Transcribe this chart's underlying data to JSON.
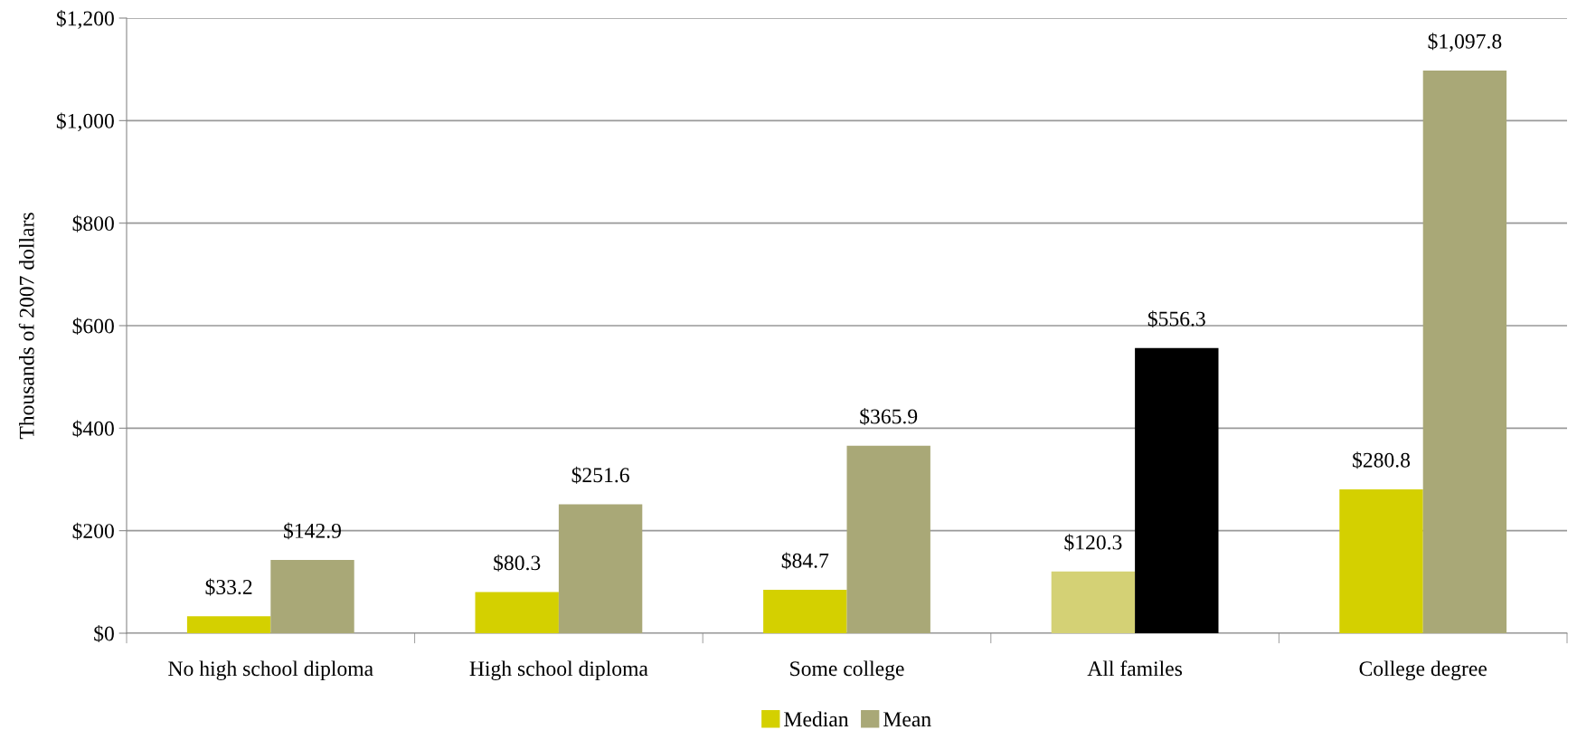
{
  "chart_data": {
    "type": "bar",
    "ylabel": "Thousands of 2007 dollars",
    "categories": [
      "No high school diploma",
      "High school diploma",
      "Some college",
      "All familes",
      "College degree"
    ],
    "series": [
      {
        "name": "Median",
        "color": "#d4d000",
        "colors": [
          "#d4d000",
          "#d4d000",
          "#d4d000",
          "#d4d175",
          "#d4d000"
        ],
        "values": [
          33.2,
          80.3,
          84.7,
          120.3,
          280.8
        ],
        "value_labels": [
          "$33.2",
          "$80.3",
          "$84.7",
          "$120.3",
          "$280.8"
        ]
      },
      {
        "name": "Mean",
        "color": "#a9a877",
        "colors": [
          "#a9a877",
          "#a9a877",
          "#a9a877",
          "#000000",
          "#a9a877"
        ],
        "values": [
          142.9,
          251.6,
          365.9,
          556.3,
          1097.8
        ],
        "value_labels": [
          "$142.9",
          "$251.6",
          "$365.9",
          "$556.3",
          "$1,097.8"
        ]
      }
    ],
    "ylim": [
      0,
      1200
    ],
    "yticks": [
      {
        "value": 0,
        "label": "$0"
      },
      {
        "value": 200,
        "label": "$200"
      },
      {
        "value": 400,
        "label": "$400"
      },
      {
        "value": 600,
        "label": "$600"
      },
      {
        "value": 800,
        "label": "$800"
      },
      {
        "value": 1000,
        "label": "$1,000"
      },
      {
        "value": 1200,
        "label": "$1,200"
      }
    ],
    "grid": "y",
    "legend": "bottom"
  }
}
